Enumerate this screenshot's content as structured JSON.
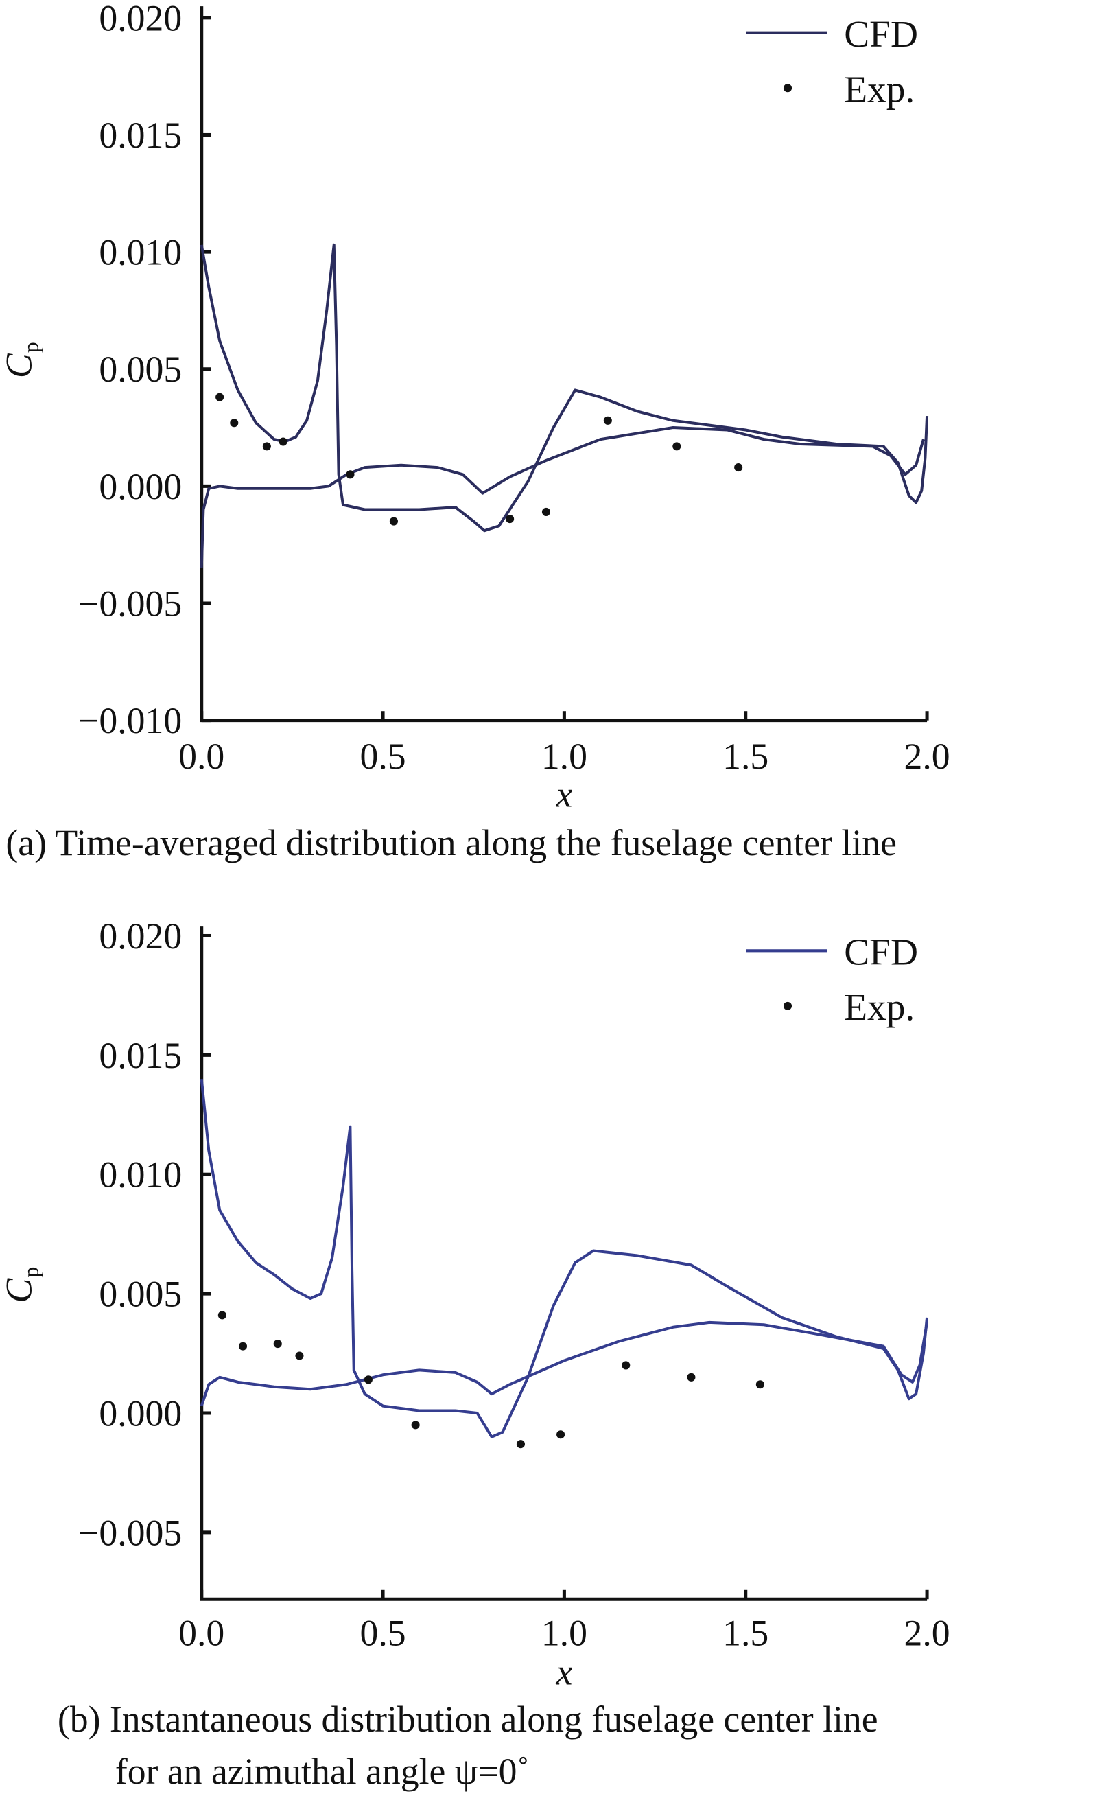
{
  "chart_data": [
    {
      "type": "line",
      "caption": "(a) Time-averaged distribution along the fuselage center line",
      "xlabel": "x",
      "ylabel": "C",
      "ylabel_sub": "p",
      "xlim": [
        0,
        2.0
      ],
      "ylim": [
        -0.01,
        0.02
      ],
      "xticks": [
        "0.0",
        "0.5",
        "1.0",
        "1.5",
        "2.0"
      ],
      "xtick_values": [
        0,
        0.5,
        1.0,
        1.5,
        2.0
      ],
      "yticks": [
        "0.020",
        "0.015",
        "0.010",
        "0.005",
        "0.000",
        "−0.005",
        "−0.010"
      ],
      "ytick_values": [
        0.02,
        0.015,
        0.01,
        0.005,
        0,
        -0.005,
        -0.01
      ],
      "legend": {
        "placement": "top-right",
        "entries": [
          "CFD",
          "Exp."
        ]
      },
      "line_color": "#2b2d5e",
      "series": [
        {
          "name": "CFD",
          "segments": [
            [
              [
                0,
                0.0103
              ],
              [
                0.02,
                0.0085
              ],
              [
                0.05,
                0.0062
              ],
              [
                0.1,
                0.0041
              ],
              [
                0.15,
                0.0027
              ],
              [
                0.2,
                0.002
              ],
              [
                0.23,
                0.0019
              ],
              [
                0.26,
                0.0021
              ],
              [
                0.29,
                0.0028
              ],
              [
                0.32,
                0.0045
              ],
              [
                0.345,
                0.0075
              ],
              [
                0.365,
                0.0103
              ],
              [
                0.372,
                0.006
              ],
              [
                0.378,
                0.0005
              ],
              [
                0.39,
                -0.0008
              ],
              [
                0.45,
                -0.001
              ],
              [
                0.6,
                -0.001
              ],
              [
                0.7,
                -0.0009
              ],
              [
                0.75,
                -0.0015
              ],
              [
                0.78,
                -0.0019
              ],
              [
                0.82,
                -0.0017
              ],
              [
                0.9,
                0.0002
              ],
              [
                0.97,
                0.0025
              ],
              [
                1.03,
                0.0041
              ],
              [
                1.1,
                0.0038
              ],
              [
                1.2,
                0.0032
              ],
              [
                1.3,
                0.0028
              ],
              [
                1.5,
                0.0024
              ],
              [
                1.6,
                0.0021
              ],
              [
                1.75,
                0.0018
              ],
              [
                1.88,
                0.0017
              ],
              [
                1.92,
                0.001
              ],
              [
                1.95,
                -0.0004
              ],
              [
                1.97,
                -0.0007
              ],
              [
                1.985,
                -0.0002
              ],
              [
                1.995,
                0.0012
              ],
              [
                2.0,
                0.003
              ]
            ],
            [
              [
                0,
                -0.0035
              ],
              [
                0.005,
                -0.001
              ],
              [
                0.02,
                -0.0001
              ],
              [
                0.05,
                0.0
              ],
              [
                0.1,
                -0.0001
              ],
              [
                0.2,
                -0.0001
              ],
              [
                0.3,
                -0.0001
              ],
              [
                0.35,
                0.0
              ],
              [
                0.4,
                0.0005
              ],
              [
                0.45,
                0.0008
              ],
              [
                0.55,
                0.0009
              ],
              [
                0.65,
                0.0008
              ],
              [
                0.72,
                0.0005
              ],
              [
                0.775,
                -0.0003
              ],
              [
                0.85,
                0.0004
              ],
              [
                0.95,
                0.0011
              ],
              [
                1.1,
                0.002
              ],
              [
                1.3,
                0.0025
              ],
              [
                1.45,
                0.0024
              ],
              [
                1.55,
                0.002
              ],
              [
                1.65,
                0.0018
              ],
              [
                1.85,
                0.0017
              ],
              [
                1.9,
                0.0013
              ],
              [
                1.94,
                0.0005
              ],
              [
                1.97,
                0.0009
              ],
              [
                1.99,
                0.002
              ]
            ]
          ]
        },
        {
          "name": "Exp.",
          "points": [
            [
              0.05,
              0.0038
            ],
            [
              0.09,
              0.0027
            ],
            [
              0.18,
              0.0017
            ],
            [
              0.225,
              0.0019
            ],
            [
              0.41,
              0.0005
            ],
            [
              0.53,
              -0.0015
            ],
            [
              0.85,
              -0.0014
            ],
            [
              0.95,
              -0.0011
            ],
            [
              1.12,
              0.0028
            ],
            [
              1.31,
              0.0017
            ],
            [
              1.48,
              0.0008
            ]
          ]
        }
      ]
    },
    {
      "type": "line",
      "caption": "(b) Instantaneous distribution along fuselage center line",
      "caption_line2": "for an azimuthal angle ψ=0˚",
      "xlabel": "x",
      "ylabel": "C",
      "ylabel_sub": "p",
      "xlim": [
        0,
        2.0
      ],
      "ylim": [
        -0.0078,
        0.02
      ],
      "xticks": [
        "0.0",
        "0.5",
        "1.0",
        "1.5",
        "2.0"
      ],
      "xtick_values": [
        0,
        0.5,
        1.0,
        1.5,
        2.0
      ],
      "yticks": [
        "0.020",
        "0.015",
        "0.010",
        "0.005",
        "0.000",
        "−0.005"
      ],
      "ytick_values": [
        0.02,
        0.015,
        0.01,
        0.005,
        0,
        -0.005
      ],
      "legend": {
        "placement": "top-right",
        "entries": [
          "CFD",
          "Exp."
        ]
      },
      "line_color": "#353d8f",
      "series": [
        {
          "name": "CFD",
          "segments": [
            [
              [
                0,
                0.014
              ],
              [
                0.02,
                0.011
              ],
              [
                0.05,
                0.0085
              ],
              [
                0.1,
                0.0072
              ],
              [
                0.15,
                0.0063
              ],
              [
                0.2,
                0.0058
              ],
              [
                0.25,
                0.0052
              ],
              [
                0.3,
                0.0048
              ],
              [
                0.33,
                0.005
              ],
              [
                0.36,
                0.0065
              ],
              [
                0.39,
                0.0095
              ],
              [
                0.41,
                0.012
              ],
              [
                0.415,
                0.006
              ],
              [
                0.42,
                0.0018
              ],
              [
                0.45,
                0.0008
              ],
              [
                0.5,
                0.0003
              ],
              [
                0.6,
                0.0001
              ],
              [
                0.7,
                0.0001
              ],
              [
                0.76,
                0.0
              ],
              [
                0.8,
                -0.001
              ],
              [
                0.83,
                -0.0008
              ],
              [
                0.9,
                0.0015
              ],
              [
                0.97,
                0.0045
              ],
              [
                1.03,
                0.0063
              ],
              [
                1.08,
                0.0068
              ],
              [
                1.2,
                0.0066
              ],
              [
                1.35,
                0.0062
              ],
              [
                1.45,
                0.0053
              ],
              [
                1.6,
                0.004
              ],
              [
                1.75,
                0.0032
              ],
              [
                1.88,
                0.0027
              ],
              [
                1.92,
                0.0018
              ],
              [
                1.95,
                0.0006
              ],
              [
                1.97,
                0.0008
              ],
              [
                1.99,
                0.0025
              ],
              [
                2.0,
                0.004
              ]
            ],
            [
              [
                0,
                0.0003
              ],
              [
                0.02,
                0.0012
              ],
              [
                0.05,
                0.0015
              ],
              [
                0.1,
                0.0013
              ],
              [
                0.2,
                0.0011
              ],
              [
                0.3,
                0.001
              ],
              [
                0.4,
                0.0012
              ],
              [
                0.5,
                0.0016
              ],
              [
                0.6,
                0.0018
              ],
              [
                0.7,
                0.0017
              ],
              [
                0.76,
                0.0013
              ],
              [
                0.8,
                0.0008
              ],
              [
                0.85,
                0.0012
              ],
              [
                1.0,
                0.0022
              ],
              [
                1.15,
                0.003
              ],
              [
                1.3,
                0.0036
              ],
              [
                1.4,
                0.0038
              ],
              [
                1.55,
                0.0037
              ],
              [
                1.7,
                0.0033
              ],
              [
                1.88,
                0.0028
              ],
              [
                1.93,
                0.0016
              ],
              [
                1.96,
                0.0013
              ],
              [
                1.98,
                0.002
              ],
              [
                2.0,
                0.0038
              ]
            ]
          ]
        },
        {
          "name": "Exp.",
          "points": [
            [
              0.057,
              0.0041
            ],
            [
              0.114,
              0.0028
            ],
            [
              0.21,
              0.0029
            ],
            [
              0.27,
              0.0024
            ],
            [
              0.46,
              0.0014
            ],
            [
              0.59,
              -0.0005
            ],
            [
              0.88,
              -0.0013
            ],
            [
              0.99,
              -0.0009
            ],
            [
              1.17,
              0.002
            ],
            [
              1.35,
              0.0015
            ],
            [
              1.54,
              0.0012
            ]
          ]
        }
      ]
    }
  ]
}
